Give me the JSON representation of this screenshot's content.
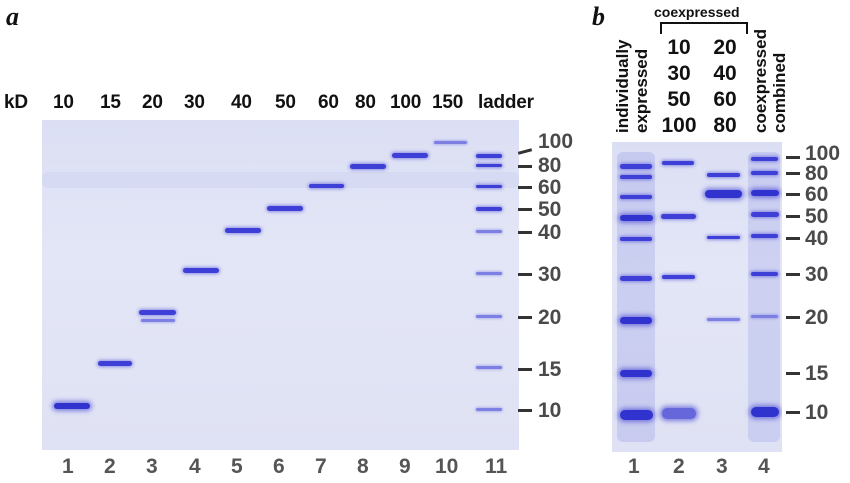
{
  "panel_a": {
    "label": "a",
    "kd_label": "kD",
    "lane_headers": [
      "10",
      "15",
      "20",
      "30",
      "40",
      "50",
      "60",
      "80",
      "100",
      "150",
      "ladder"
    ],
    "marker_ticks": [
      "100",
      "80",
      "60",
      "50",
      "40",
      "30",
      "20",
      "15",
      "10"
    ],
    "lane_numbers": [
      "1",
      "2",
      "3",
      "4",
      "5",
      "6",
      "7",
      "8",
      "9",
      "10",
      "11"
    ]
  },
  "panel_b": {
    "label": "b",
    "lane1_header": [
      "individually",
      "expressed"
    ],
    "bracket_label": "coexpressed",
    "lane2_values": [
      "10",
      "30",
      "50",
      "100"
    ],
    "lane3_values": [
      "20",
      "40",
      "60",
      "80"
    ],
    "lane4_header": [
      "coexpressed",
      "combined"
    ],
    "marker_ticks": [
      "100",
      "80",
      "60",
      "50",
      "40",
      "30",
      "20",
      "15",
      "10"
    ],
    "lane_numbers": [
      "1",
      "2",
      "3",
      "4"
    ]
  },
  "colors": {
    "band": "#3d3fd6",
    "gel_background": "#dfe2f4",
    "tick_text": "#4a4a4a"
  }
}
